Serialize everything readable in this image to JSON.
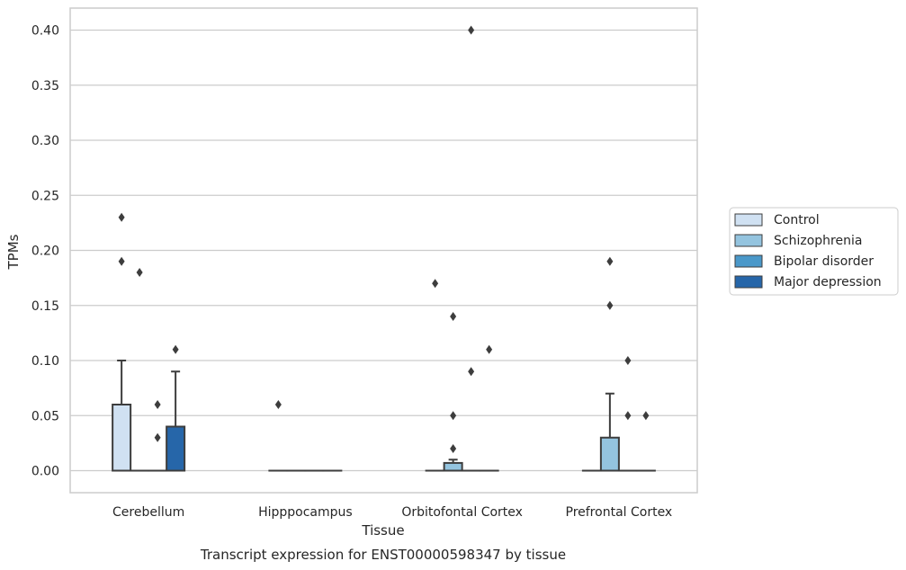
{
  "chart_data": {
    "type": "box",
    "title": "",
    "caption": "Transcript expression for ENST00000598347 by tissue",
    "xlabel": "Tissue",
    "ylabel": "TPMs",
    "ylim": [
      -0.02,
      0.42
    ],
    "yticks": [
      0.0,
      0.05,
      0.1,
      0.15,
      0.2,
      0.25,
      0.3,
      0.35,
      0.4
    ],
    "ytick_labels": [
      "0.00",
      "0.05",
      "0.10",
      "0.15",
      "0.20",
      "0.25",
      "0.30",
      "0.35",
      "0.40"
    ],
    "grid": "horizontal",
    "legend_position": "right",
    "categories": [
      "Cerebellum",
      "Hipppocampus",
      "Orbitofontal Cortex",
      "Prefrontal Cortex"
    ],
    "series": [
      {
        "name": "Control",
        "color": "#d0e1f2",
        "boxes": [
          {
            "q1": 0.0,
            "median": 0.0,
            "q3": 0.06,
            "whislo": 0.0,
            "whishi": 0.1,
            "fliers": [
              0.23,
              0.19
            ]
          },
          {
            "q1": 0.0,
            "median": 0.0,
            "q3": 0.0,
            "whislo": 0.0,
            "whishi": 0.0,
            "fliers": [
              0.06
            ]
          },
          {
            "q1": 0.0,
            "median": 0.0,
            "q3": 0.0,
            "whislo": 0.0,
            "whishi": 0.0,
            "fliers": [
              0.17
            ]
          },
          {
            "q1": 0.0,
            "median": 0.0,
            "q3": 0.0,
            "whislo": 0.0,
            "whishi": 0.0,
            "fliers": []
          }
        ]
      },
      {
        "name": "Schizophrenia",
        "color": "#94c4df",
        "boxes": [
          {
            "q1": 0.0,
            "median": 0.0,
            "q3": 0.0,
            "whislo": 0.0,
            "whishi": 0.0,
            "fliers": [
              0.18
            ]
          },
          {
            "q1": 0.0,
            "median": 0.0,
            "q3": 0.0,
            "whislo": 0.0,
            "whishi": 0.0,
            "fliers": []
          },
          {
            "q1": 0.0,
            "median": 0.0,
            "q3": 0.007,
            "whislo": 0.0,
            "whishi": 0.01,
            "fliers": [
              0.14,
              0.05,
              0.02
            ]
          },
          {
            "q1": 0.0,
            "median": 0.0,
            "q3": 0.03,
            "whislo": 0.0,
            "whishi": 0.07,
            "fliers": [
              0.19,
              0.15
            ]
          }
        ]
      },
      {
        "name": "Bipolar disorder",
        "color": "#4a98c9",
        "boxes": [
          {
            "q1": 0.0,
            "median": 0.0,
            "q3": 0.0,
            "whislo": 0.0,
            "whishi": 0.0,
            "fliers": [
              0.06,
              0.03
            ]
          },
          {
            "q1": 0.0,
            "median": 0.0,
            "q3": 0.0,
            "whislo": 0.0,
            "whishi": 0.0,
            "fliers": []
          },
          {
            "q1": 0.0,
            "median": 0.0,
            "q3": 0.0,
            "whislo": 0.0,
            "whishi": 0.0,
            "fliers": [
              0.4,
              0.09
            ]
          },
          {
            "q1": 0.0,
            "median": 0.0,
            "q3": 0.0,
            "whislo": 0.0,
            "whishi": 0.0,
            "fliers": [
              0.1,
              0.05
            ]
          }
        ]
      },
      {
        "name": "Major depression",
        "color": "#2666a9",
        "boxes": [
          {
            "q1": 0.0,
            "median": 0.0,
            "q3": 0.04,
            "whislo": 0.0,
            "whishi": 0.09,
            "fliers": [
              0.11
            ]
          },
          {
            "q1": 0.0,
            "median": 0.0,
            "q3": 0.0,
            "whislo": 0.0,
            "whishi": 0.0,
            "fliers": []
          },
          {
            "q1": 0.0,
            "median": 0.0,
            "q3": 0.0,
            "whislo": 0.0,
            "whishi": 0.0,
            "fliers": [
              0.11
            ]
          },
          {
            "q1": 0.0,
            "median": 0.0,
            "q3": 0.0,
            "whislo": 0.0,
            "whishi": 0.0,
            "fliers": [
              0.05
            ]
          }
        ]
      }
    ]
  }
}
